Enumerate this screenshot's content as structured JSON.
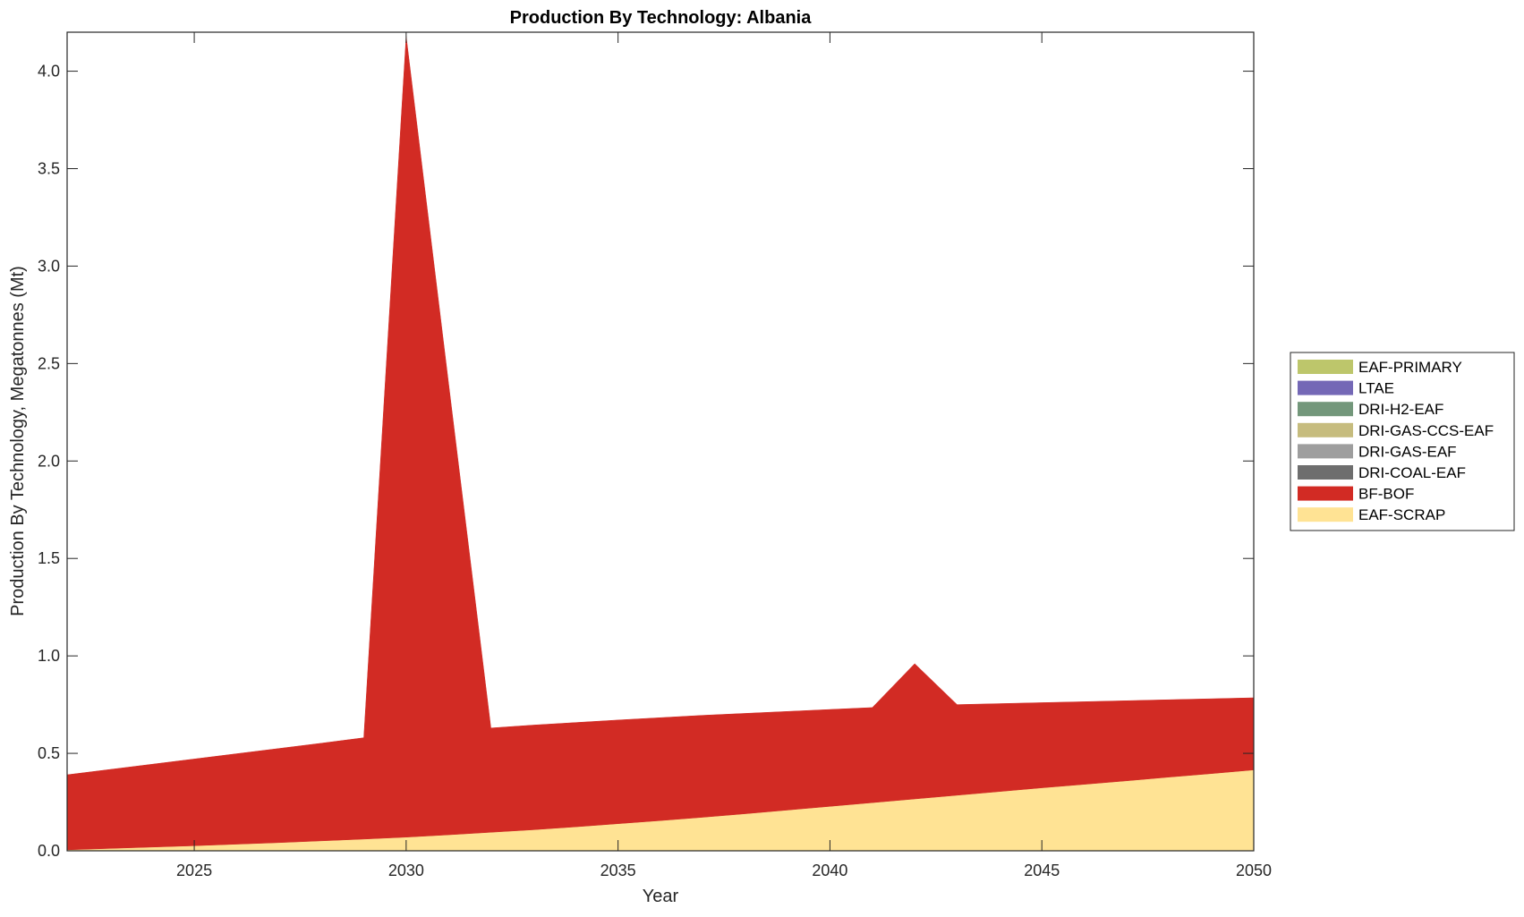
{
  "chart_data": {
    "type": "area",
    "stacked": true,
    "title": "Production By Technology: Albania",
    "xlabel": "Year",
    "ylabel": "Production By Technology, Megatonnes (Mt)",
    "xlim": [
      2022,
      2050
    ],
    "ylim": [
      0,
      4.2
    ],
    "xticks": [
      2025,
      2030,
      2035,
      2040,
      2045,
      2050
    ],
    "yticks": [
      "0.0",
      "0.5",
      "1.0",
      "1.5",
      "2.0",
      "2.5",
      "3.0",
      "3.5",
      "4.0"
    ],
    "legend_position": "outside-right",
    "x": [
      2022,
      2023,
      2024,
      2025,
      2026,
      2027,
      2028,
      2029,
      2030,
      2031,
      2032,
      2033,
      2034,
      2035,
      2036,
      2037,
      2038,
      2039,
      2040,
      2041,
      2042,
      2043,
      2044,
      2045,
      2046,
      2047,
      2048,
      2049,
      2050
    ],
    "series": [
      {
        "name": "EAF-SCRAP",
        "color": "#FFE394",
        "values": [
          0.005,
          0.012,
          0.019,
          0.026,
          0.034,
          0.042,
          0.051,
          0.06,
          0.07,
          0.082,
          0.095,
          0.108,
          0.123,
          0.139,
          0.155,
          0.172,
          0.19,
          0.209,
          0.228,
          0.247,
          0.266,
          0.285,
          0.304,
          0.323,
          0.341,
          0.359,
          0.378,
          0.396,
          0.415
        ]
      },
      {
        "name": "BF-BOF",
        "color": "#D22B24",
        "values": [
          0.385,
          0.405,
          0.425,
          0.445,
          0.464,
          0.483,
          0.501,
          0.52,
          4.11,
          2.318,
          0.535,
          0.537,
          0.535,
          0.532,
          0.528,
          0.523,
          0.515,
          0.506,
          0.497,
          0.488,
          0.694,
          0.465,
          0.451,
          0.437,
          0.424,
          0.411,
          0.397,
          0.384,
          0.37
        ]
      },
      {
        "name": "DRI-COAL-EAF",
        "color": "#6E6E6E",
        "values": [
          0,
          0,
          0,
          0,
          0,
          0,
          0,
          0,
          0,
          0,
          0,
          0,
          0,
          0,
          0,
          0,
          0,
          0,
          0,
          0,
          0,
          0,
          0,
          0,
          0,
          0,
          0,
          0,
          0
        ]
      },
      {
        "name": "DRI-GAS-EAF",
        "color": "#9E9E9E",
        "values": [
          0,
          0,
          0,
          0,
          0,
          0,
          0,
          0,
          0,
          0,
          0,
          0,
          0,
          0,
          0,
          0,
          0,
          0,
          0,
          0,
          0,
          0,
          0,
          0,
          0,
          0,
          0,
          0,
          0
        ]
      },
      {
        "name": "DRI-GAS-CCS-EAF",
        "color": "#C6BC7E",
        "values": [
          0,
          0,
          0,
          0,
          0,
          0,
          0,
          0,
          0,
          0,
          0,
          0,
          0,
          0,
          0,
          0,
          0,
          0,
          0,
          0,
          0,
          0,
          0,
          0,
          0,
          0,
          0,
          0,
          0
        ]
      },
      {
        "name": "DRI-H2-EAF",
        "color": "#73977B",
        "values": [
          0,
          0,
          0,
          0,
          0,
          0,
          0,
          0,
          0,
          0,
          0,
          0,
          0,
          0,
          0,
          0,
          0,
          0,
          0,
          0,
          0,
          0,
          0,
          0,
          0,
          0,
          0,
          0,
          0
        ]
      },
      {
        "name": "LTAE",
        "color": "#7468B6",
        "values": [
          0,
          0,
          0,
          0,
          0,
          0,
          0,
          0,
          0,
          0,
          0,
          0,
          0,
          0,
          0,
          0,
          0,
          0,
          0,
          0,
          0,
          0,
          0,
          0,
          0,
          0,
          0,
          0,
          0
        ]
      },
      {
        "name": "EAF-PRIMARY",
        "color": "#BDC66B",
        "values": [
          0,
          0,
          0,
          0,
          0,
          0,
          0,
          0,
          0,
          0,
          0,
          0,
          0,
          0,
          0,
          0,
          0,
          0,
          0,
          0,
          0,
          0,
          0,
          0,
          0,
          0,
          0,
          0,
          0
        ]
      }
    ],
    "legend_order": [
      "EAF-PRIMARY",
      "LTAE",
      "DRI-H2-EAF",
      "DRI-GAS-CCS-EAF",
      "DRI-GAS-EAF",
      "DRI-COAL-EAF",
      "BF-BOF",
      "EAF-SCRAP"
    ]
  }
}
